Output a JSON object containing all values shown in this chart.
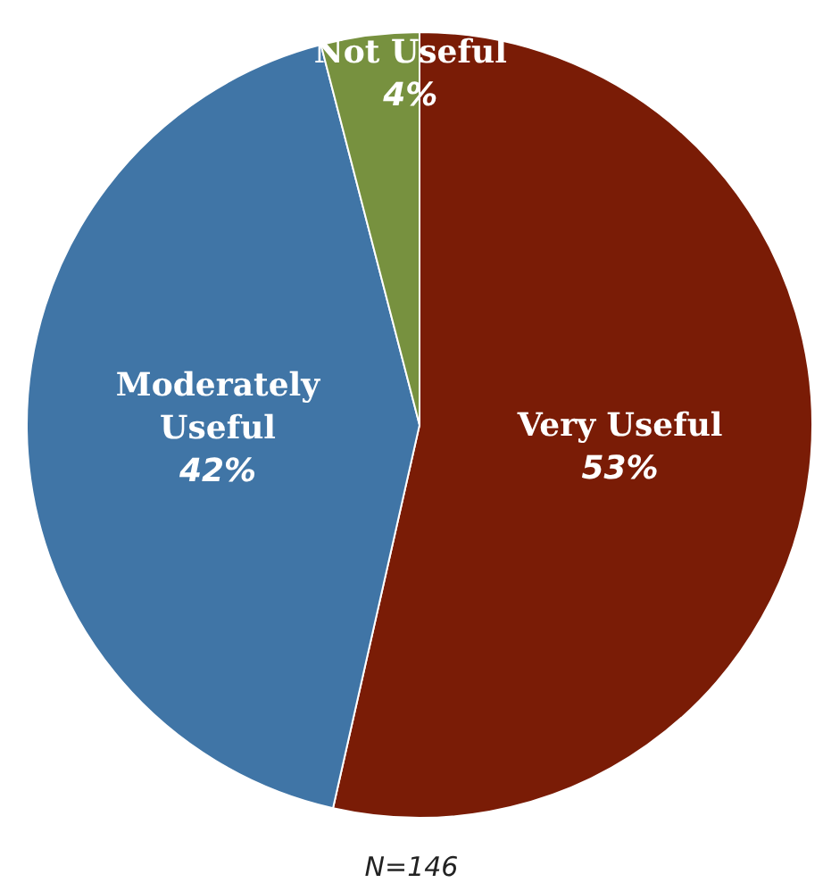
{
  "chart_data": {
    "type": "pie",
    "categories": [
      "Very Useful",
      "Moderately Useful",
      "Not Useful"
    ],
    "values": [
      53,
      42,
      4
    ],
    "colors": [
      "#7a1c06",
      "#4075a6",
      "#77913f"
    ],
    "value_labels": [
      "53%",
      "42%",
      "4%"
    ],
    "legend": false,
    "annotations": [
      "N=146"
    ]
  }
}
